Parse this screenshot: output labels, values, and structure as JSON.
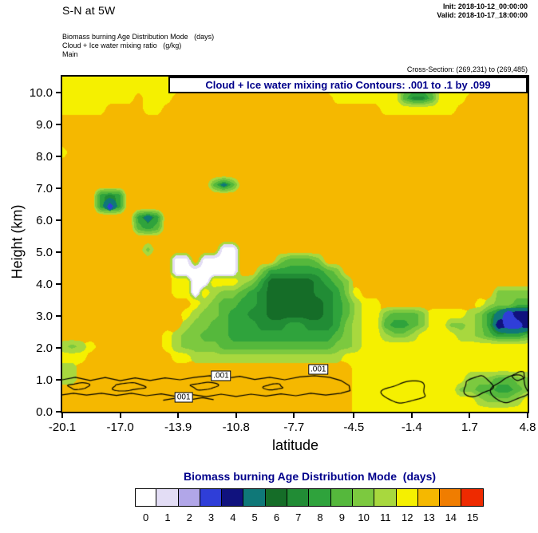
{
  "header": {
    "title": "S-N at 5W",
    "init": "Init: 2018-10-12_00:00:00",
    "valid": "Valid: 2018-10-17_18:00:00",
    "sub1": "Biomass burning Age Distribution Mode   (days)",
    "sub2": "Cloud + Ice water mixing ratio   (g/kg)",
    "sub3": "Main",
    "cross_section": "Cross-Section: (269,231) to (269,485)"
  },
  "chart_data": {
    "type": "heatmap",
    "title_banner": "Cloud + Ice water mixing ratio Contours: .001 to .1 by .099",
    "field": "Biomass burning Age Distribution Mode (days)",
    "contour_field": "Cloud + Ice water mixing ratio (g/kg)",
    "contour_levels_text": ".001 to .1 by .099",
    "xlabel": "latitude",
    "ylabel": "Height (km)",
    "xlim": [
      -20.1,
      4.8
    ],
    "ylim": [
      0,
      10.5
    ],
    "x_ticks": [
      -20.1,
      -17.0,
      -13.9,
      -10.8,
      -7.7,
      -4.5,
      -1.4,
      1.7,
      4.8
    ],
    "x_tick_labels": [
      "-20.1",
      "-17.0",
      "-13.9",
      "-10.8",
      "-7.7",
      "-4.5",
      "-1.4",
      "1.7",
      "4.8"
    ],
    "y_ticks": [
      0,
      1,
      2,
      3,
      4,
      5,
      6,
      7,
      8,
      9,
      10
    ],
    "y_tick_labels": [
      "0.0",
      "1.0",
      "2.0",
      "3.0",
      "4.0",
      "5.0",
      "6.0",
      "7.0",
      "8.0",
      "9.0",
      "10.0"
    ],
    "levels": [
      0,
      1,
      2,
      3,
      4,
      5,
      6,
      7,
      8,
      9,
      10,
      11,
      12,
      13,
      14,
      15
    ],
    "palette": [
      "#ffffff",
      "#e3ddf5",
      "#b1a6e8",
      "#2f3ed8",
      "#10127e",
      "#0f7878",
      "#156d28",
      "#218c35",
      "#2fa33c",
      "#55b83c",
      "#7cc93f",
      "#a8d83e",
      "#f5f000",
      "#f5b800",
      "#f07d00",
      "#ee2a00"
    ],
    "grid_encoding": "run-length tokens: <hex class 0-f><repeat count>; rows top (10.5 km) to bottom (0 km), 50 columns from lat -20.1 to 4.8",
    "grid": [
      "c14 d13 c19 d4",
      "c13 d15 c5 b1 c2 a1 92 a1 c5 d5",
      "c8 d1 c3 d17 c7 91 72 91 c3 d7",
      "c5 d4 c2 d23 c8 d8",
      "d50",
      "d50",
      "d50",
      "c1 d49",
      "d50",
      "d50",
      "d16 91 51 91 d31",
      "d4 81 71 81 d43",
      "d4 81 31 81 d43",
      "d8 81 51 81 d39",
      "d8 91 81 91 d39",
      "d50",
      "d9 a1 d7 02 d31",
      "d12 02 d1 04 d4 a1 93 a1 d22",
      "d12 07 d2 a1 86 91 a1 d20",
      "d12 c2 02 c3 b1 a1 81 65 71 81 91 a1 d19",
      "d12 c2 01 c1 b1 a2 91 81 71 65 72 81 a1 c1 d14 a4",
      "d14 c1 b1 a1 92 82 71 66 71 81 91 b1 c2 d10 c1 b1 a2 92",
      "d13 c1 b1 a2 91 82 72 66 71 81 91 b1 c2 a1 93 a1 c4 b1 a1 81 51 31 42",
      "d13 b1 a2 92 83 73 82 73 81 a1 b1 c2 91 82 91 a1 c2 a2 b1 a1 81 41 32 41",
      "d11 c1 b1 a2 93 811 91 a1 b1 c2 b1 a2 b1 c4 b2 a1 91 83 91",
      "b1 a1 b1 c1 d7 c1 b1 a4 912 a2 b1 c1 c17",
      "c3 d9 c2 b16 c2 c18",
      "b2 d29 c19",
      "b2 d29 c12 a3 92 a2",
      "d31 c11 a2 92 82 91 a1",
      "d31 c13 b1 a3 b1 c1",
      "d31 c19"
    ],
    "contour_labels": [
      {
        "text": "001",
        "lat": -13.6,
        "km": 0.46
      },
      {
        "text": ".001",
        "lat": -11.6,
        "km": 1.12
      },
      {
        "text": ".001",
        "lat": -6.4,
        "km": 1.32
      }
    ],
    "contour_paths": [
      [
        [
          -20.1,
          1.0
        ],
        [
          -19.4,
          1.08
        ],
        [
          -18.6,
          0.98
        ],
        [
          -17.8,
          1.07
        ],
        [
          -17.0,
          0.97
        ],
        [
          -16.2,
          1.06
        ],
        [
          -15.4,
          0.98
        ],
        [
          -14.6,
          1.06
        ],
        [
          -13.8,
          1.0
        ],
        [
          -13.0,
          1.08
        ],
        [
          -12.2,
          1.13
        ],
        [
          -11.4,
          1.04
        ],
        [
          -10.6,
          1.11
        ],
        [
          -9.8,
          1.01
        ],
        [
          -9.0,
          1.08
        ],
        [
          -8.2,
          1.0
        ],
        [
          -7.4,
          1.09
        ],
        [
          -6.6,
          1.13
        ],
        [
          -5.8,
          1.08
        ],
        [
          -5.2,
          0.98
        ],
        [
          -4.75,
          0.82
        ],
        [
          -4.7,
          0.66
        ],
        [
          -5.2,
          0.58
        ],
        [
          -6.0,
          0.52
        ],
        [
          -6.8,
          0.58
        ],
        [
          -7.6,
          0.5
        ],
        [
          -8.4,
          0.56
        ],
        [
          -9.2,
          0.49
        ],
        [
          -10.0,
          0.55
        ],
        [
          -10.8,
          0.48
        ],
        [
          -11.6,
          0.55
        ],
        [
          -12.4,
          0.47
        ],
        [
          -13.2,
          0.54
        ],
        [
          -14.0,
          0.48
        ],
        [
          -14.8,
          0.56
        ],
        [
          -15.6,
          0.5
        ],
        [
          -16.4,
          0.58
        ],
        [
          -17.2,
          0.51
        ],
        [
          -18.0,
          0.58
        ],
        [
          -18.8,
          0.52
        ],
        [
          -19.5,
          0.58
        ],
        [
          -20.1,
          0.53
        ]
      ],
      [
        [
          -14.7,
          0.36
        ],
        [
          -14.0,
          0.43
        ],
        [
          -13.3,
          0.37
        ],
        [
          -12.6,
          0.44
        ],
        [
          -12.0,
          0.38
        ]
      ]
    ],
    "contour_loops": [
      {
        "cx": -19.2,
        "cy": 0.8,
        "rx": 0.55,
        "ry": 0.1
      },
      {
        "cx": -16.6,
        "cy": 0.78,
        "rx": 0.85,
        "ry": 0.12
      },
      {
        "cx": -12.5,
        "cy": 0.8,
        "rx": 0.7,
        "ry": 0.11
      },
      {
        "cx": -8.8,
        "cy": 0.78,
        "rx": 0.5,
        "ry": 0.09
      },
      {
        "cx": -1.7,
        "cy": 0.62,
        "rx": 1.15,
        "ry": 0.32
      },
      {
        "cx": 2.1,
        "cy": 0.8,
        "rx": 0.75,
        "ry": 0.3
      },
      {
        "cx": 3.9,
        "cy": 0.72,
        "rx": 0.95,
        "ry": 0.4
      },
      {
        "cx": 4.35,
        "cy": 1.12,
        "rx": 0.32,
        "ry": 0.13
      }
    ],
    "colorbar": {
      "title": "Biomass burning Age Distribution Mode  (days)",
      "labels": [
        "0",
        "1",
        "2",
        "3",
        "4",
        "5",
        "6",
        "7",
        "8",
        "9",
        "10",
        "11",
        "12",
        "13",
        "14",
        "15"
      ]
    }
  }
}
